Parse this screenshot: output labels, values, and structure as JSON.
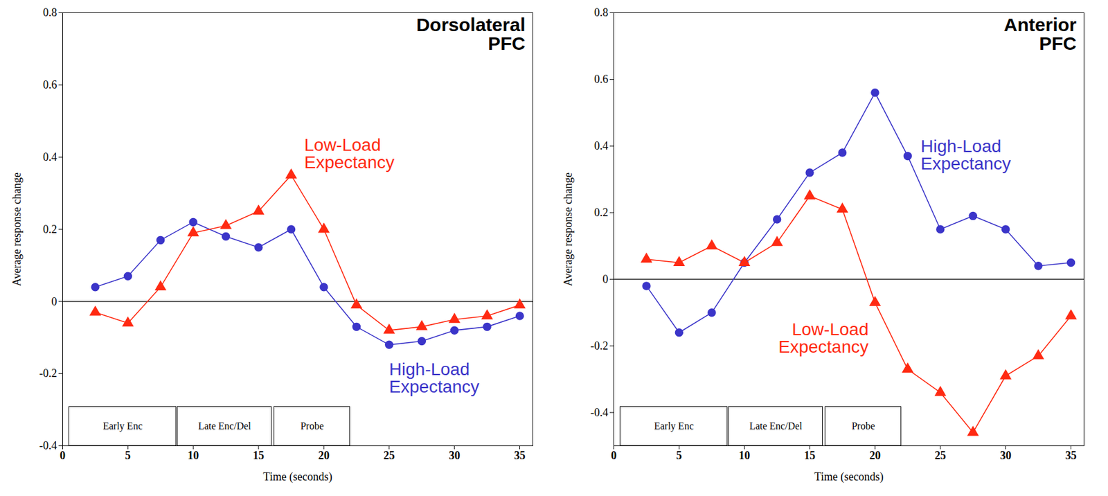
{
  "chart_data": [
    {
      "type": "line",
      "title": "Dorsolateral PFC",
      "x_label": "Time (seconds)",
      "y_label": "Average response change",
      "x": [
        2.5,
        5,
        7.5,
        10,
        12.5,
        15,
        17.5,
        20,
        22.5,
        25,
        27.5,
        30,
        32.5,
        35
      ],
      "series": [
        {
          "name": "High-Load Expectancy",
          "color": "#3b35c9",
          "marker": "circle",
          "values": [
            0.04,
            0.07,
            0.17,
            0.22,
            0.18,
            0.15,
            0.2,
            0.04,
            -0.07,
            -0.12,
            -0.11,
            -0.08,
            -0.07,
            -0.04
          ]
        },
        {
          "name": "Low-Load Expectancy",
          "color": "#ff2a12",
          "marker": "triangle",
          "values": [
            -0.03,
            -0.06,
            0.04,
            0.19,
            0.21,
            0.25,
            0.35,
            0.2,
            -0.01,
            -0.08,
            -0.07,
            -0.05,
            -0.04,
            -0.01
          ]
        }
      ],
      "xlim": [
        0,
        36
      ],
      "xticks": [
        0,
        5,
        10,
        15,
        20,
        25,
        30,
        35
      ],
      "ylim": [
        -0.4,
        0.8
      ],
      "yticks": [
        -0.4,
        -0.2,
        0,
        0.2,
        0.4,
        0.6,
        0.8
      ],
      "grid": false,
      "annotations": [
        {
          "text": "Early Enc",
          "x_start": 0.5,
          "x_end": 8.7
        },
        {
          "text": "Late Enc/Del",
          "x_start": 8.8,
          "x_end": 16
        },
        {
          "text": "Probe",
          "x_start": 16.2,
          "x_end": 22
        }
      ]
    },
    {
      "type": "line",
      "title": "Anterior PFC",
      "x_label": "Time (seconds)",
      "y_label": "Average response change",
      "x": [
        2.5,
        5,
        7.5,
        10,
        12.5,
        15,
        17.5,
        20,
        22.5,
        25,
        27.5,
        30,
        32.5,
        35
      ],
      "series": [
        {
          "name": "High-Load Expectancy",
          "color": "#3b35c9",
          "marker": "circle",
          "values": [
            -0.02,
            -0.16,
            -0.1,
            0.05,
            0.18,
            0.32,
            0.38,
            0.56,
            0.37,
            0.15,
            0.19,
            0.15,
            0.04,
            0.05
          ]
        },
        {
          "name": "Low-Load Expectancy",
          "color": "#ff2a12",
          "marker": "triangle",
          "values": [
            0.06,
            0.05,
            0.1,
            0.05,
            0.11,
            0.25,
            0.21,
            -0.07,
            -0.27,
            -0.34,
            -0.46,
            -0.29,
            -0.23,
            -0.11
          ]
        }
      ],
      "xlim": [
        0,
        36
      ],
      "xticks": [
        0,
        5,
        10,
        15,
        20,
        25,
        30,
        35
      ],
      "ylim": [
        -0.5,
        0.8
      ],
      "yticks": [
        -0.4,
        -0.2,
        0,
        0.2,
        0.4,
        0.6,
        0.8
      ],
      "grid": false,
      "annotations": [
        {
          "text": "Early Enc",
          "x_start": 0.5,
          "x_end": 8.7
        },
        {
          "text": "Late Enc/Del",
          "x_start": 8.8,
          "x_end": 16
        },
        {
          "text": "Probe",
          "x_start": 16.2,
          "x_end": 22
        }
      ]
    }
  ]
}
